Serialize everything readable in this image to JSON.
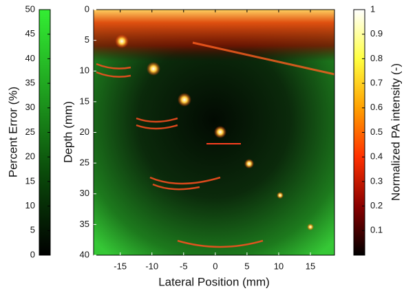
{
  "chart_data": {
    "type": "heatmap",
    "xlabel": "Lateral Position (mm)",
    "ylabel": "Depth (mm)",
    "xlim": [
      -19.2,
      18.8
    ],
    "ylim": [
      0,
      40
    ],
    "xticks": [
      -15,
      -10,
      -5,
      0,
      5,
      10,
      15
    ],
    "yticks": [
      0,
      5,
      10,
      15,
      20,
      25,
      30,
      35,
      40
    ],
    "colorbar": {
      "label": "Normalized PA intensity (-)",
      "lim": [
        0,
        1
      ],
      "ticks": [
        0.1,
        0.2,
        0.3,
        0.4,
        0.5,
        0.6,
        0.7,
        0.8,
        0.9,
        1
      ],
      "colors": [
        "#000000",
        "#8a0000",
        "#ff3000",
        "#ffa000",
        "#ffff40",
        "#ffffff"
      ]
    },
    "error_colorbar": {
      "label": "Percent Error (%)",
      "lim": [
        0,
        50
      ],
      "ticks": [
        0,
        5,
        10,
        15,
        20,
        25,
        30,
        35,
        40,
        45,
        50
      ],
      "colors": [
        "#000000",
        "#0a4a0a",
        "#1fa01f",
        "#33ee33"
      ]
    }
  }
}
